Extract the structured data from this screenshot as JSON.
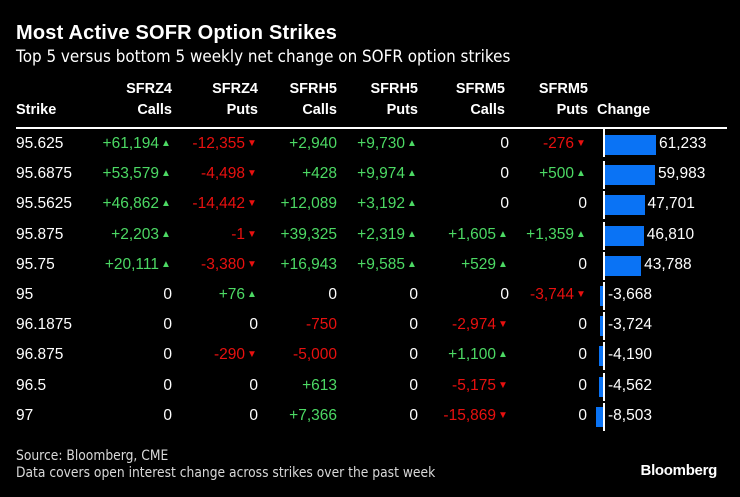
{
  "header": {
    "title": "Most Active SOFR Option Strikes",
    "subtitle": "Top 5 versus bottom 5 weekly net change on SOFR option strikes"
  },
  "footer": {
    "source": "Source: Bloomberg, CME",
    "note": "Data covers open interest change across strikes over the past week",
    "brand": "Bloomberg"
  },
  "colors": {
    "positive": "#4cd964",
    "negative": "#e8100f",
    "bar": "#0a73f5",
    "background": "#000000"
  },
  "chart_data": {
    "type": "table",
    "title": "Most Active SOFR Option Strikes",
    "subtitle": "Top 5 versus bottom 5 weekly net change on SOFR option strikes",
    "columns": [
      {
        "key": "strike",
        "line1": "",
        "line2": "Strike"
      },
      {
        "key": "sfrz4_calls",
        "line1": "SFRZ4",
        "line2": "Calls",
        "arrows": true
      },
      {
        "key": "sfrz4_puts",
        "line1": "SFRZ4",
        "line2": "Puts",
        "arrows": true
      },
      {
        "key": "sfrh5_calls",
        "line1": "SFRH5",
        "line2": "Calls",
        "arrows": false
      },
      {
        "key": "sfrh5_puts",
        "line1": "SFRH5",
        "line2": "Puts",
        "arrows": true
      },
      {
        "key": "sfrm5_calls",
        "line1": "SFRM5",
        "line2": "Calls",
        "arrows": true
      },
      {
        "key": "sfrm5_puts",
        "line1": "SFRM5",
        "line2": "Puts",
        "arrows": true
      },
      {
        "key": "change",
        "line1": "",
        "line2": "Change",
        "bar": true
      }
    ],
    "rows": [
      {
        "strike": "95.625",
        "sfrz4_calls": 61194,
        "sfrz4_puts": -12355,
        "sfrh5_calls": 2940,
        "sfrh5_puts": 9730,
        "sfrm5_calls": 0,
        "sfrm5_puts": -276,
        "change": 61233
      },
      {
        "strike": "95.6875",
        "sfrz4_calls": 53579,
        "sfrz4_puts": -4498,
        "sfrh5_calls": 428,
        "sfrh5_puts": 9974,
        "sfrm5_calls": 0,
        "sfrm5_puts": 500,
        "change": 59983
      },
      {
        "strike": "95.5625",
        "sfrz4_calls": 46862,
        "sfrz4_puts": -14442,
        "sfrh5_calls": 12089,
        "sfrh5_puts": 3192,
        "sfrm5_calls": 0,
        "sfrm5_puts": 0,
        "change": 47701
      },
      {
        "strike": "95.875",
        "sfrz4_calls": 2203,
        "sfrz4_puts": -1,
        "sfrh5_calls": 39325,
        "sfrh5_puts": 2319,
        "sfrm5_calls": 1605,
        "sfrm5_puts": 1359,
        "change": 46810
      },
      {
        "strike": "95.75",
        "sfrz4_calls": 20111,
        "sfrz4_puts": -3380,
        "sfrh5_calls": 16943,
        "sfrh5_puts": 9585,
        "sfrm5_calls": 529,
        "sfrm5_puts": 0,
        "change": 43788
      },
      {
        "strike": "95",
        "sfrz4_calls": 0,
        "sfrz4_puts": 76,
        "sfrh5_calls": 0,
        "sfrh5_puts": 0,
        "sfrm5_calls": 0,
        "sfrm5_puts": -3744,
        "change": -3668
      },
      {
        "strike": "96.1875",
        "sfrz4_calls": 0,
        "sfrz4_puts": 0,
        "sfrh5_calls": -750,
        "sfrh5_puts": 0,
        "sfrm5_calls": -2974,
        "sfrm5_puts": 0,
        "change": -3724
      },
      {
        "strike": "96.875",
        "sfrz4_calls": 0,
        "sfrz4_puts": -290,
        "sfrh5_calls": -5000,
        "sfrh5_puts": 0,
        "sfrm5_calls": 1100,
        "sfrm5_puts": 0,
        "change": -4190
      },
      {
        "strike": "96.5",
        "sfrz4_calls": 0,
        "sfrz4_puts": 0,
        "sfrh5_calls": 613,
        "sfrh5_puts": 0,
        "sfrm5_calls": -5175,
        "sfrm5_puts": 0,
        "change": -4562
      },
      {
        "strike": "97",
        "sfrz4_calls": 0,
        "sfrz4_puts": 0,
        "sfrh5_calls": 7366,
        "sfrh5_puts": 0,
        "sfrm5_calls": -15869,
        "sfrm5_puts": 0,
        "change": -8503
      }
    ],
    "change_range": [
      -8503,
      61233
    ]
  }
}
